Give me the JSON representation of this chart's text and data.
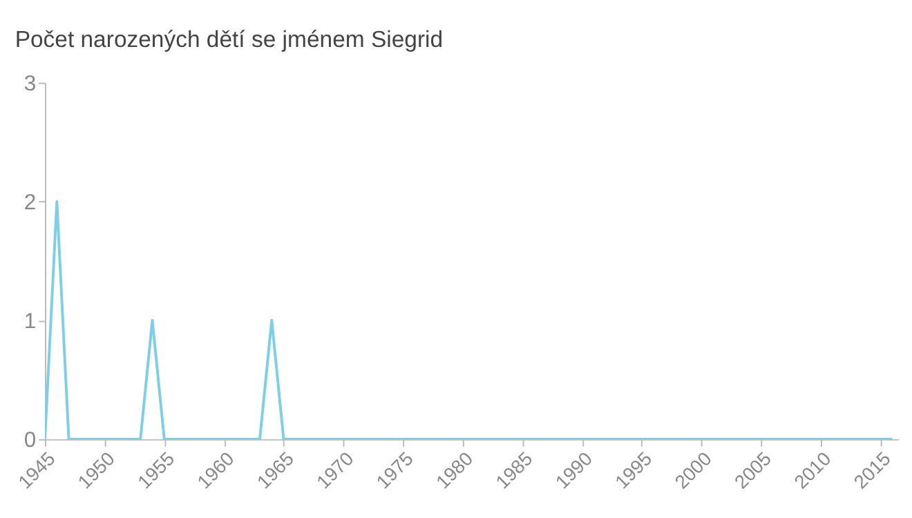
{
  "chart_data": {
    "type": "line",
    "title": "Počet narozených dětí se jménem Siegrid",
    "x": [
      1945,
      1946,
      1947,
      1948,
      1949,
      1950,
      1951,
      1952,
      1953,
      1954,
      1955,
      1956,
      1957,
      1958,
      1959,
      1960,
      1961,
      1962,
      1963,
      1964,
      1965,
      1966,
      1967,
      1968,
      1969,
      1970,
      1971,
      1972,
      1973,
      1974,
      1975,
      1976,
      1977,
      1978,
      1979,
      1980,
      1981,
      1982,
      1983,
      1984,
      1985,
      1986,
      1987,
      1988,
      1989,
      1990,
      1991,
      1992,
      1993,
      1994,
      1995,
      1996,
      1997,
      1998,
      1999,
      2000,
      2001,
      2002,
      2003,
      2004,
      2005,
      2006,
      2007,
      2008,
      2009,
      2010,
      2011,
      2012,
      2013,
      2014,
      2015,
      2016
    ],
    "series": [
      {
        "color": "#7ccfea",
        "values": [
          0,
          2,
          0,
          0,
          0,
          0,
          0,
          0,
          0,
          1,
          0,
          0,
          0,
          0,
          0,
          0,
          0,
          0,
          0,
          1,
          0,
          0,
          0,
          0,
          0,
          0,
          0,
          0,
          0,
          0,
          0,
          0,
          0,
          0,
          0,
          0,
          0,
          0,
          0,
          0,
          0,
          0,
          0,
          0,
          0,
          0,
          0,
          0,
          0,
          0,
          0,
          0,
          0,
          0,
          0,
          0,
          0,
          0,
          0,
          0,
          0,
          0,
          0,
          0,
          0,
          0,
          0,
          0,
          0,
          0,
          0,
          0
        ]
      }
    ],
    "xlim": [
      1945,
      2016.5
    ],
    "xticks": [
      1945,
      1950,
      1955,
      1960,
      1965,
      1970,
      1975,
      1980,
      1985,
      1990,
      1995,
      2000,
      2005,
      2010,
      2015
    ],
    "ylim": [
      0,
      3
    ],
    "yticks": [
      0,
      1,
      2,
      3
    ],
    "grid": false,
    "marker": "none",
    "line_style": "solid"
  }
}
